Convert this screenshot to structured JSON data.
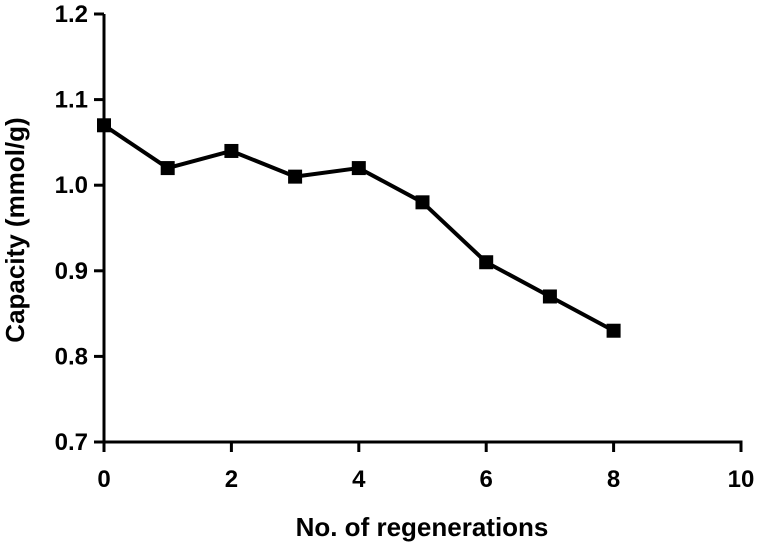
{
  "chart_data": {
    "type": "line",
    "title": "",
    "xlabel": "No. of regenerations",
    "ylabel": "Capacity (mmol/g)",
    "xlim": [
      0,
      10
    ],
    "ylim": [
      0.7,
      1.2
    ],
    "x_ticks": [
      0,
      2,
      4,
      6,
      8,
      10
    ],
    "x_tick_labels": [
      "0",
      "2",
      "4",
      "6",
      "8",
      "10"
    ],
    "y_ticks": [
      0.7,
      0.8,
      0.9,
      1.0,
      1.1,
      1.2
    ],
    "y_tick_labels": [
      "0.7",
      "0.8",
      "0.9",
      "1.0",
      "1.1",
      "1.2"
    ],
    "grid": false,
    "marker": "square",
    "line_color": "#000000",
    "series": [
      {
        "x": [
          0,
          1,
          2,
          3,
          4,
          5,
          6,
          7,
          8
        ],
        "values": [
          1.07,
          1.02,
          1.04,
          1.01,
          1.02,
          0.98,
          0.91,
          0.87,
          0.83
        ]
      }
    ]
  }
}
